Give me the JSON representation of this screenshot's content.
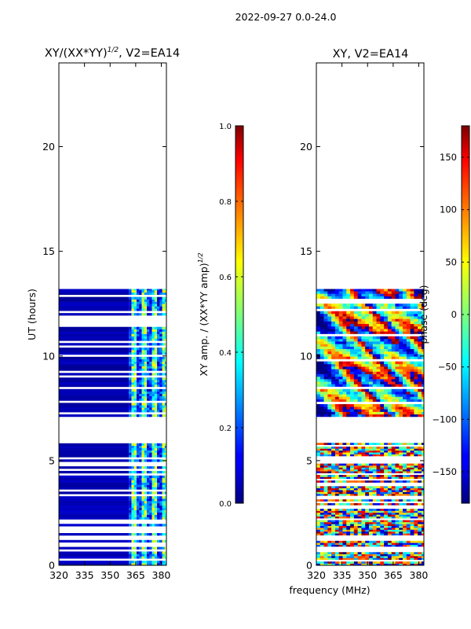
{
  "suptitle": "2022-09-27 0.0-24.0",
  "xlabel": "frequency (MHz)",
  "chart_data": [
    {
      "type": "heatmap",
      "title_main": "XY/(XX*YY)",
      "title_sup": "1/2",
      "title_rest": ", V2=EA14",
      "ylabel": "UT (hours)",
      "xlim": [
        320,
        383
      ],
      "ylim": [
        0,
        24
      ],
      "xticks": [
        "320",
        "335",
        "350",
        "365",
        "380"
      ],
      "xtick_values": [
        320,
        335,
        350,
        365,
        380
      ],
      "yticks": [
        "0",
        "5",
        "10",
        "15",
        "20"
      ],
      "ytick_values": [
        0,
        5,
        10,
        15,
        20
      ],
      "data_blocks": [
        {
          "from": 0.0,
          "to": 5.9,
          "pattern": "sparse-low-amp"
        },
        {
          "from": 7.1,
          "to": 13.2,
          "pattern": "dense-low-amp"
        }
      ],
      "high_amp_band_mhz": [
        361,
        381
      ],
      "colorbar": {
        "label_main": "XY amp. / (XX*YY amp)",
        "label_sup": "1/2",
        "min": 0.0,
        "max": 1.0,
        "ticks": [
          "0.0",
          "0.2",
          "0.4",
          "0.6",
          "0.8",
          "1.0"
        ],
        "tick_values": [
          0.0,
          0.2,
          0.4,
          0.6,
          0.8,
          1.0
        ]
      }
    },
    {
      "type": "heatmap",
      "title": "XY, V2=EA14",
      "xlim": [
        320,
        383
      ],
      "ylim": [
        0,
        24
      ],
      "xticks": [
        "320",
        "335",
        "350",
        "365",
        "380"
      ],
      "xtick_values": [
        320,
        335,
        350,
        365,
        380
      ],
      "yticks": [
        "0",
        "5",
        "10",
        "15",
        "20"
      ],
      "ytick_values": [
        0,
        5,
        10,
        15,
        20
      ],
      "data_blocks": [
        {
          "from": 0.0,
          "to": 5.9,
          "pattern": "random-phase"
        },
        {
          "from": 7.1,
          "to": 13.2,
          "pattern": "structured-phase"
        }
      ],
      "colorbar": {
        "label": "phase (deg)",
        "min": -180,
        "max": 180,
        "ticks": [
          "−150",
          "−100",
          "−50",
          "0",
          "50",
          "100",
          "150"
        ],
        "tick_values": [
          -150,
          -100,
          -50,
          0,
          50,
          100,
          150
        ]
      }
    }
  ]
}
